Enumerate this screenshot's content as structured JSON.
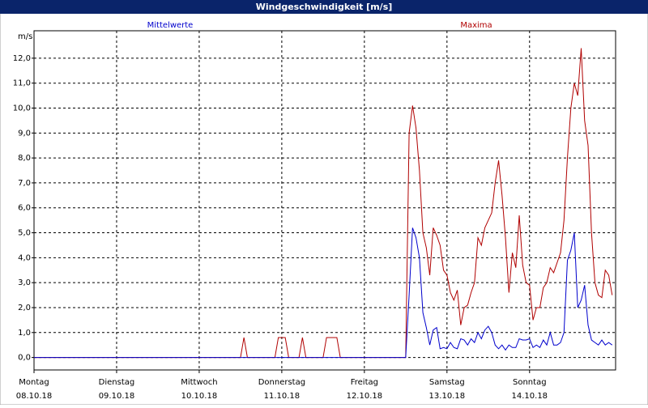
{
  "chart_data": {
    "type": "line",
    "title": "Windgeschwindigkeit [m/s]",
    "y_label": "m/s",
    "x": [
      0,
      60,
      61,
      62,
      70,
      71,
      73,
      74,
      77,
      78,
      79,
      84,
      85,
      88,
      89,
      107,
      108,
      109,
      110,
      111,
      112,
      113,
      114,
      115,
      116,
      117,
      118,
      119,
      120,
      121,
      122,
      123,
      124,
      125,
      126,
      127,
      128,
      129,
      130,
      131,
      132,
      133,
      134,
      135,
      136,
      137,
      138,
      139,
      140,
      141,
      142,
      143,
      144,
      145,
      146,
      147,
      148,
      149,
      150,
      151,
      152,
      153,
      154,
      155,
      156,
      157,
      158,
      159,
      160,
      161,
      162,
      163,
      164,
      165,
      166,
      167,
      168
    ],
    "series": [
      {
        "name": "Maxima",
        "color": "#b00000",
        "values": [
          0,
          0,
          0.8,
          0,
          0,
          0.8,
          0.8,
          0,
          0,
          0.8,
          0,
          0,
          0.8,
          0.8,
          0,
          0,
          0,
          9.0,
          10.1,
          9.2,
          7.5,
          5.0,
          4.4,
          3.3,
          5.2,
          4.9,
          4.5,
          3.5,
          3.3,
          2.6,
          2.3,
          2.7,
          1.3,
          2.0,
          2.1,
          2.6,
          3.0,
          4.8,
          4.5,
          5.2,
          5.5,
          5.8,
          7.0,
          7.9,
          6.5,
          4.8,
          2.6,
          4.2,
          3.6,
          5.7,
          3.7,
          3.0,
          2.9,
          1.5,
          2.0,
          2.0,
          2.8,
          3.0,
          3.6,
          3.4,
          3.8,
          4.2,
          5.5,
          8.0,
          10.0,
          11.0,
          10.5,
          12.4,
          9.5,
          8.5,
          5.0,
          3.0,
          2.5,
          2.4,
          3.5,
          3.3,
          2.5
        ]
      },
      {
        "name": "Mittelwerte",
        "color": "#0000cc",
        "values": [
          0,
          0,
          0,
          0,
          0,
          0,
          0,
          0,
          0,
          0,
          0,
          0,
          0,
          0,
          0,
          0,
          0,
          2.5,
          5.2,
          4.8,
          4.0,
          1.8,
          1.2,
          0.5,
          1.1,
          1.2,
          0.35,
          0.4,
          0.35,
          0.6,
          0.4,
          0.35,
          0.75,
          0.7,
          0.5,
          0.75,
          0.6,
          1.0,
          0.75,
          1.1,
          1.25,
          1.0,
          0.5,
          0.35,
          0.5,
          0.3,
          0.5,
          0.4,
          0.4,
          0.75,
          0.7,
          0.7,
          0.75,
          0.4,
          0.5,
          0.4,
          0.7,
          0.5,
          1.0,
          0.5,
          0.5,
          0.6,
          1.0,
          3.9,
          4.3,
          5.0,
          2.0,
          2.3,
          2.9,
          1.3,
          0.7,
          0.6,
          0.5,
          0.7,
          0.5,
          0.6,
          0.5
        ]
      }
    ],
    "xlim": [
      0,
      169
    ],
    "xticks": [
      {
        "value": 0,
        "label": "Montag"
      },
      {
        "value": 24,
        "label": "Dienstag"
      },
      {
        "value": 48,
        "label": "Mittwoch"
      },
      {
        "value": 72,
        "label": "Donnerstag"
      },
      {
        "value": 96,
        "label": "Freitag"
      },
      {
        "value": 120,
        "label": "Samstag"
      },
      {
        "value": 144,
        "label": "Sonntag"
      }
    ],
    "xtick_dates": [
      "08.10.18",
      "09.10.18",
      "10.10.18",
      "11.10.18",
      "12.10.18",
      "13.10.18",
      "14.10.18"
    ],
    "ylim": [
      -0.5,
      13.1
    ],
    "yticks": [
      {
        "value": 0,
        "label": "0,0"
      },
      {
        "value": 1,
        "label": "1,0"
      },
      {
        "value": 2,
        "label": "2,0"
      },
      {
        "value": 3,
        "label": "3,0"
      },
      {
        "value": 4,
        "label": "4,0"
      },
      {
        "value": 5,
        "label": "5,0"
      },
      {
        "value": 6,
        "label": "6,0"
      },
      {
        "value": 7,
        "label": "7,0"
      },
      {
        "value": 8,
        "label": "8,0"
      },
      {
        "value": 9,
        "label": "9,0"
      },
      {
        "value": 10,
        "label": "10,0"
      },
      {
        "value": 11,
        "label": "11,0"
      },
      {
        "value": 12,
        "label": "12,0"
      }
    ],
    "grid": true
  }
}
